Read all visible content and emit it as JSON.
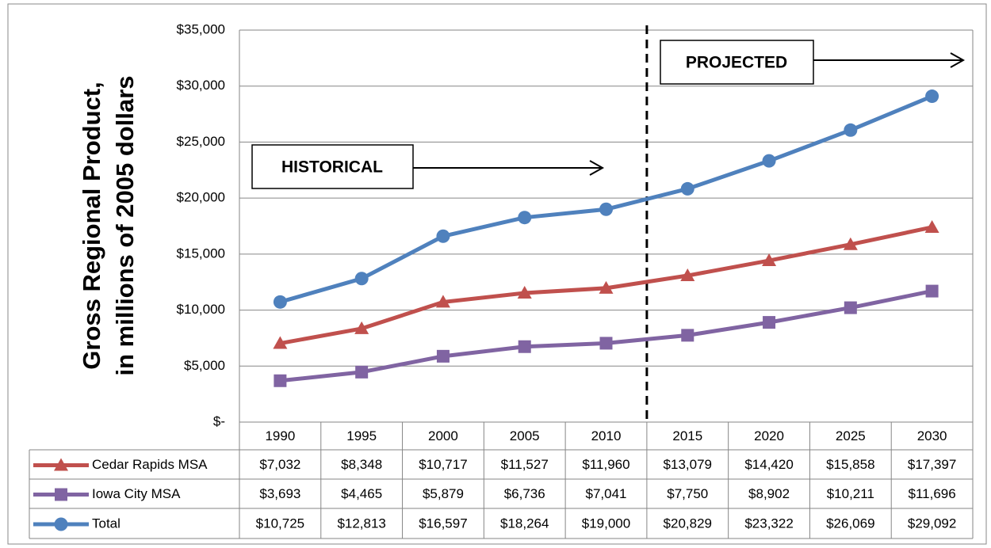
{
  "chart_data": {
    "type": "line",
    "y_label": [
      "Gross Regional Product,",
      "in millions of 2005 dollars"
    ],
    "annotations": [
      "HISTORICAL",
      "PROJECTED"
    ],
    "categories": [
      "1990",
      "1995",
      "2000",
      "2005",
      "2010",
      "2015",
      "2020",
      "2025",
      "2030"
    ],
    "series": [
      {
        "name": "Cedar Rapids MSA",
        "color": "#c0504d",
        "marker": "triangle",
        "values": [
          7032,
          8348,
          10717,
          11527,
          11960,
          13079,
          14420,
          15858,
          17397
        ],
        "value_labels": [
          "$7,032",
          "$8,348",
          "$10,717",
          "$11,527",
          "$11,960",
          "$13,079",
          "$14,420",
          "$15,858",
          "$17,397"
        ]
      },
      {
        "name": "Iowa City MSA",
        "color": "#8064a2",
        "marker": "square",
        "values": [
          3693,
          4465,
          5879,
          6736,
          7041,
          7750,
          8902,
          10211,
          11696
        ],
        "value_labels": [
          "$3,693",
          "$4,465",
          "$5,879",
          "$6,736",
          "$7,041",
          "$7,750",
          "$8,902",
          "$10,211",
          "$11,696"
        ]
      },
      {
        "name": "Total",
        "color": "#4f81bd",
        "marker": "circle",
        "values": [
          10725,
          12813,
          16597,
          18264,
          19000,
          20829,
          23322,
          26069,
          29092
        ],
        "value_labels": [
          "$10,725",
          "$12,813",
          "$16,597",
          "$18,264",
          "$19,000",
          "$20,829",
          "$23,322",
          "$26,069",
          "$29,092"
        ]
      }
    ],
    "ylim": [
      0,
      35000
    ],
    "yticks": [
      {
        "value": 0,
        "label": "$-"
      },
      {
        "value": 5000,
        "label": "$5,000"
      },
      {
        "value": 10000,
        "label": "$10,000"
      },
      {
        "value": 15000,
        "label": "$15,000"
      },
      {
        "value": 20000,
        "label": "$20,000"
      },
      {
        "value": 25000,
        "label": "$25,000"
      },
      {
        "value": 30000,
        "label": "$30,000"
      },
      {
        "value": 35000,
        "label": "$35,000"
      }
    ],
    "grid": true
  }
}
